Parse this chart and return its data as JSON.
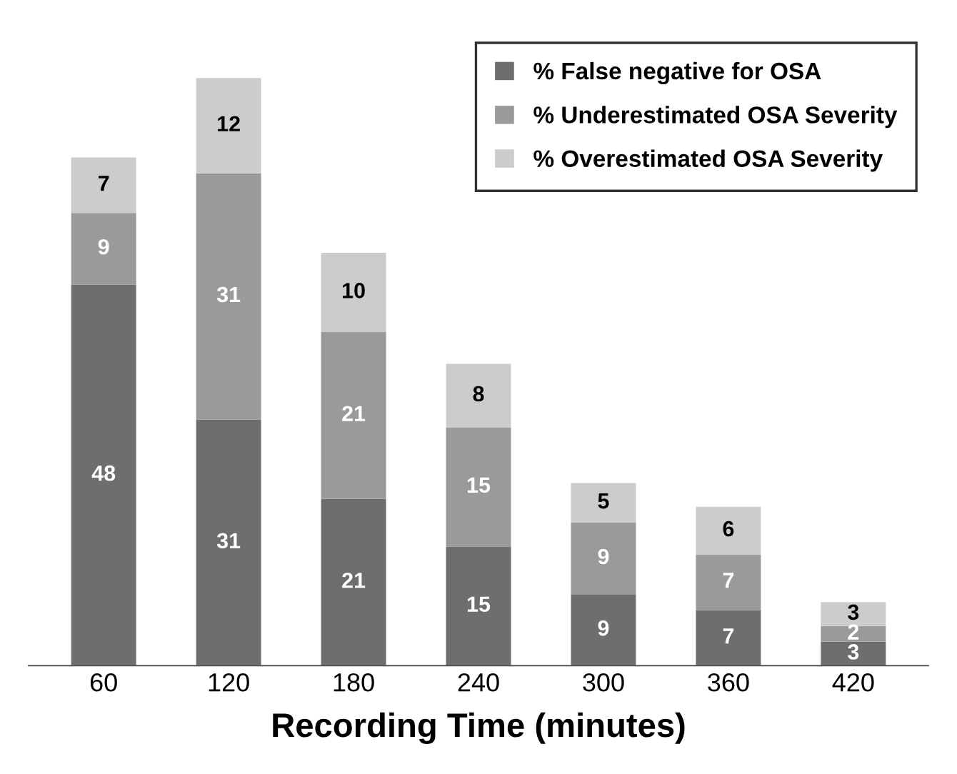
{
  "chart_data": {
    "type": "bar",
    "stacked": true,
    "data_labels": true,
    "legend": "top right",
    "grid": false,
    "tick_labels": "x",
    "xlabel": "Recording Time (minutes)",
    "categories": [
      "60",
      "120",
      "180",
      "240",
      "300",
      "360",
      "420"
    ],
    "series": [
      {
        "name": "% False negative for OSA",
        "color": "#6e6e6e",
        "values": [
          48,
          31,
          21,
          15,
          9,
          7,
          3
        ]
      },
      {
        "name": "% Underestimated OSA Severity",
        "color": "#9a9a9a",
        "values": [
          9,
          31,
          21,
          15,
          9,
          7,
          2
        ]
      },
      {
        "name": "% Overestimated OSA Severity",
        "color": "#cccccc",
        "values": [
          7,
          12,
          10,
          8,
          5,
          6,
          3
        ]
      }
    ]
  }
}
